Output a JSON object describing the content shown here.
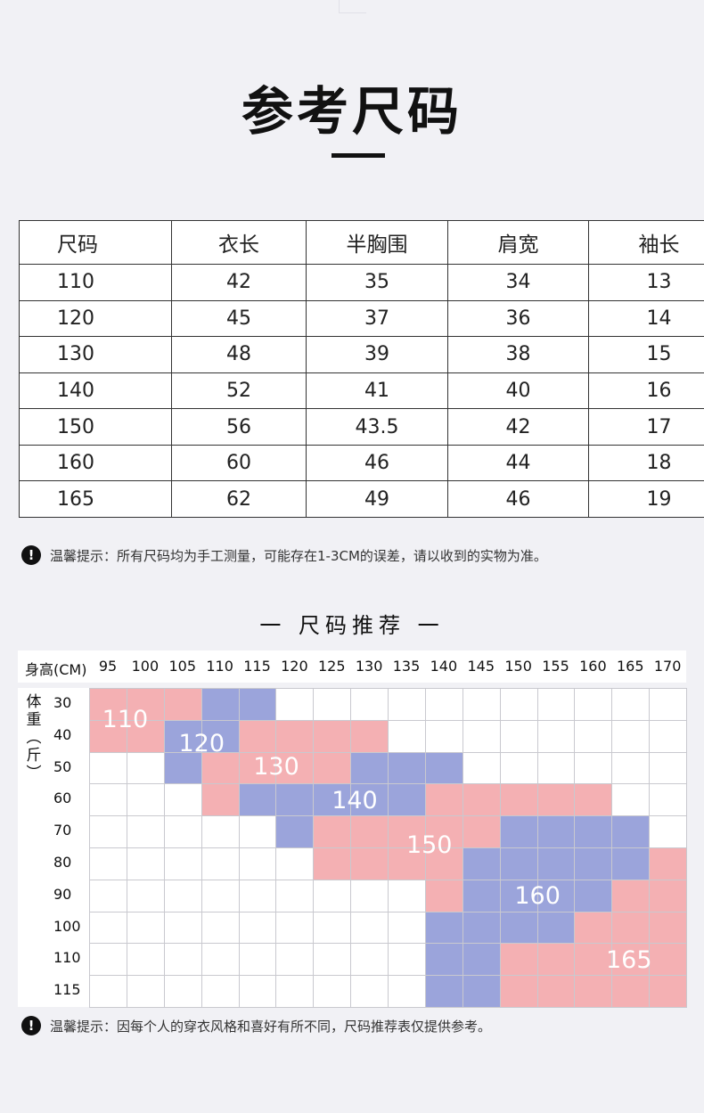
{
  "title": "参考尺码",
  "size_table": {
    "headers": [
      "尺码",
      "衣长",
      "半胸围",
      "肩宽",
      "袖长"
    ],
    "rows": [
      [
        "110",
        "42",
        "35",
        "34",
        "13"
      ],
      [
        "120",
        "45",
        "37",
        "36",
        "14"
      ],
      [
        "130",
        "48",
        "39",
        "38",
        "15"
      ],
      [
        "140",
        "52",
        "41",
        "40",
        "16"
      ],
      [
        "150",
        "56",
        "43.5",
        "42",
        "17"
      ],
      [
        "160",
        "60",
        "46",
        "44",
        "18"
      ],
      [
        "165",
        "62",
        "49",
        "46",
        "19"
      ]
    ]
  },
  "tip1": "温馨提示：所有尺码均为手工测量，可能存在1-3CM的误差，请以收到的实物为准。",
  "section_title": "一 尺码推荐 一",
  "recommend": {
    "height_label": "身高(CM)",
    "heights": [
      "95",
      "100",
      "105",
      "110",
      "115",
      "120",
      "125",
      "130",
      "135",
      "140",
      "145",
      "150",
      "155",
      "160",
      "165",
      "170"
    ],
    "weight_label": [
      "体",
      "重",
      "︵",
      "斤",
      "︶"
    ],
    "weights": [
      "30",
      "40",
      "50",
      "60",
      "70",
      "80",
      "90",
      "100",
      "110",
      "115"
    ],
    "size_labels": [
      "110",
      "120",
      "130",
      "140",
      "150",
      "160",
      "165"
    ],
    "colors": {
      "pink": "#f4b0b3",
      "blue": "#9ba4db",
      "white": "#ffffff"
    },
    "grid": [
      "PPPBBWWWWWWWWWWW",
      "PPBBPPPPWWWWWWWW",
      "WWBPPPPBBBWWWWWW",
      "WWWPBBBBBPPPPPWW",
      "WWWWWBPPPPPBBBBW",
      "WWWWWWPPPPBBBBBP",
      "WWWWWWWWWPBBBBPP",
      "WWWWWWWWWBBBBPPP",
      "WWWWWWWWWBBPPPPP",
      "WWWWWWWWWBBPPPPP"
    ]
  },
  "tip2": "温馨提示：因每个人的穿衣风格和喜好有所不同，尺码推荐表仅提供参考。"
}
